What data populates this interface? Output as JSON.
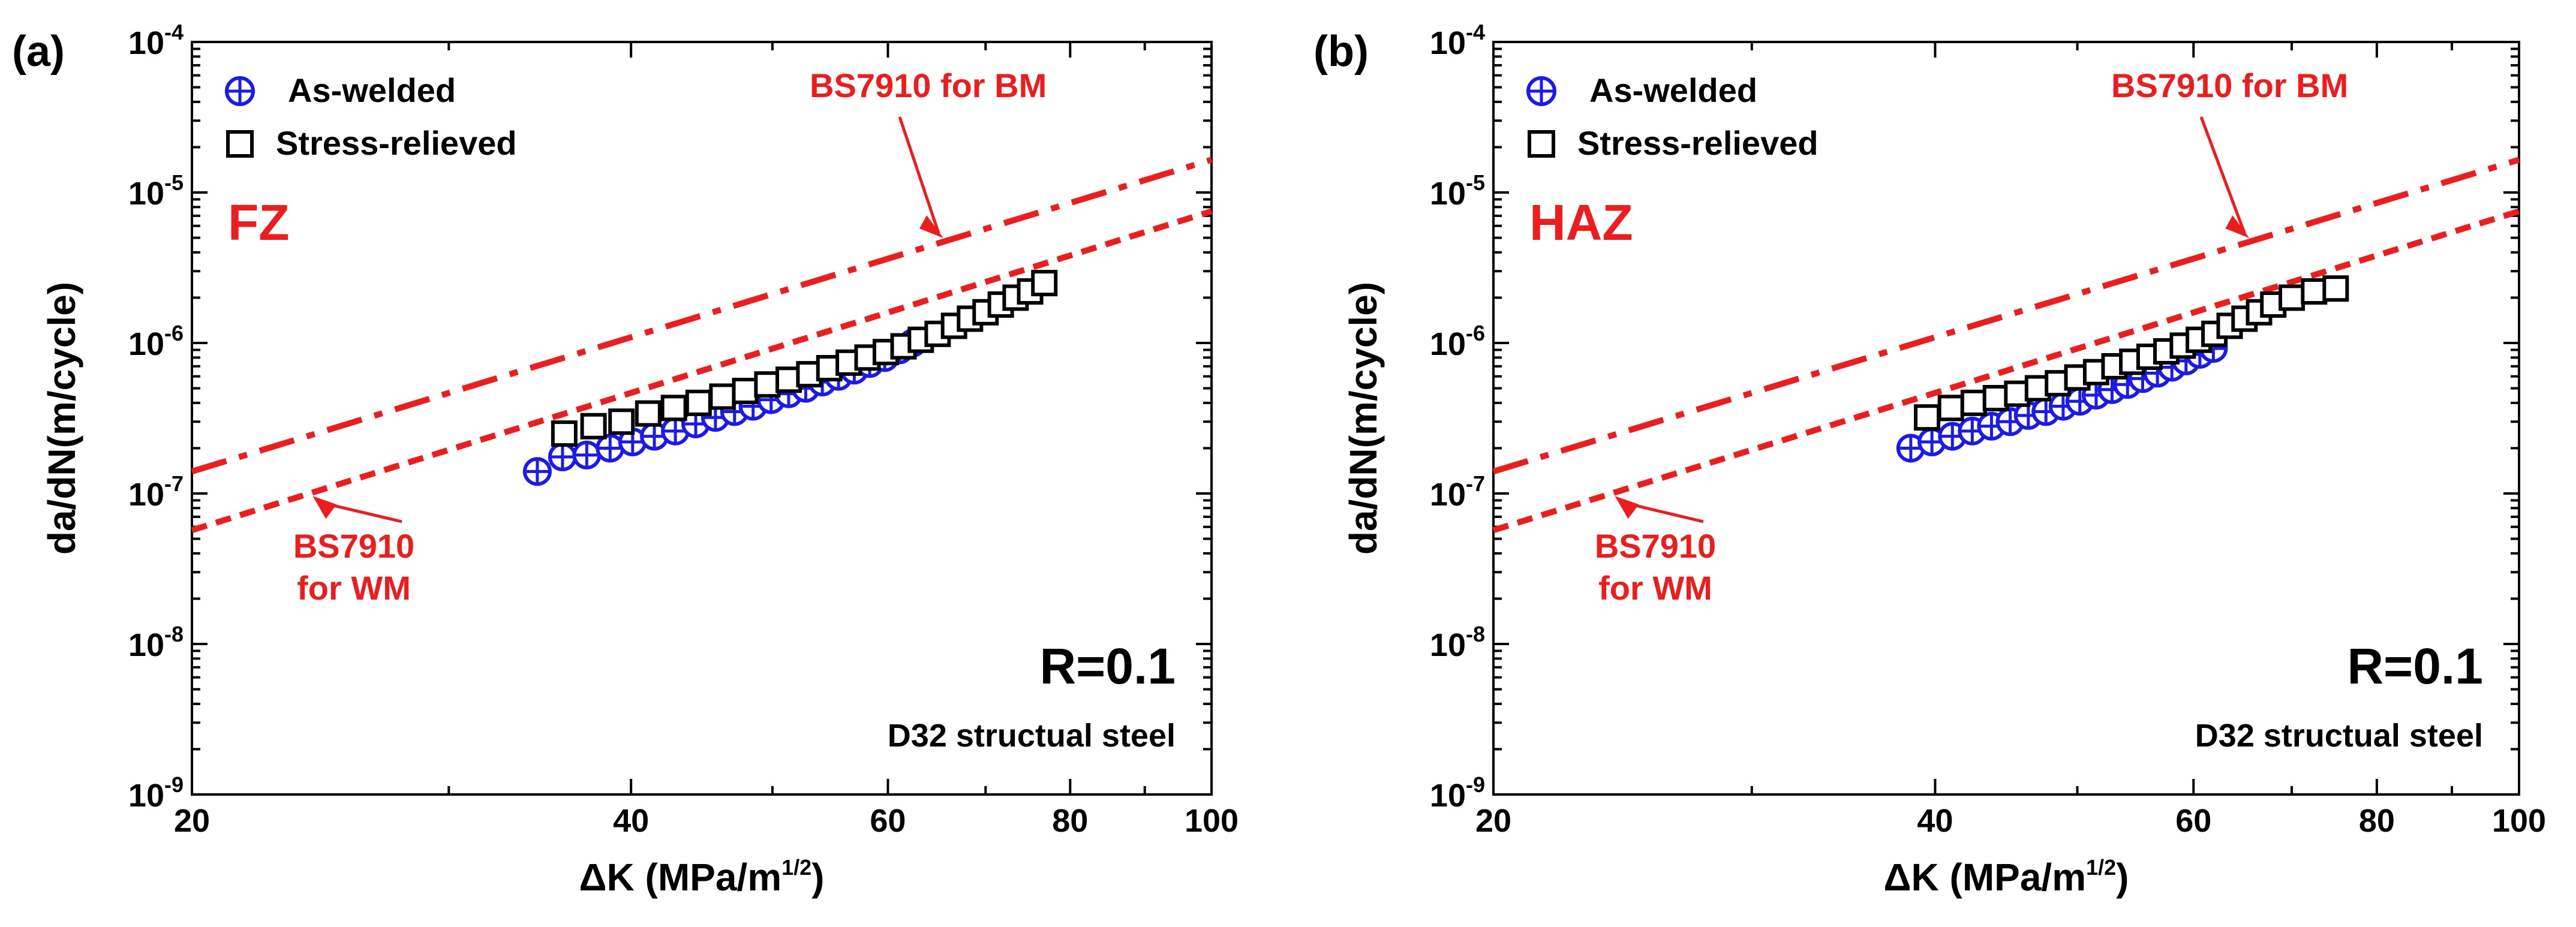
{
  "colors": {
    "as_welded": "#1a1aee",
    "stress_relieved": "#000000",
    "reference": "#ee1c1c"
  },
  "chart_data": [
    {
      "type": "scatter",
      "panel_tag": "(a)",
      "region_label": "FZ",
      "xlabel": "ΔK (MPa/m",
      "xlabel_sup": "1/2",
      "xlabel_close": ")",
      "ylabel": "da/dN(m/cycle)",
      "x_scale": "log",
      "y_scale": "log",
      "xlim": [
        20,
        100
      ],
      "ylim": [
        1e-09,
        0.0001
      ],
      "x_ticks": [
        {
          "v": 20,
          "label": "20"
        },
        {
          "v": 40,
          "label": "40"
        },
        {
          "v": 60,
          "label": "60"
        },
        {
          "v": 80,
          "label": "80"
        },
        {
          "v": 100,
          "label": "100"
        }
      ],
      "y_ticks": [
        {
          "v": 1e-09,
          "mant": "10",
          "exp": "-9"
        },
        {
          "v": 1e-08,
          "mant": "10",
          "exp": "-8"
        },
        {
          "v": 1e-07,
          "mant": "10",
          "exp": "-7"
        },
        {
          "v": 1e-06,
          "mant": "10",
          "exp": "-6"
        },
        {
          "v": 1e-05,
          "mant": "10",
          "exp": "-5"
        },
        {
          "v": 0.0001,
          "mant": "10",
          "exp": "-4"
        }
      ],
      "legend": {
        "placement": "top-left",
        "entries": [
          "As-welded",
          "Stress-relieved"
        ]
      },
      "series": [
        {
          "name": "As-welded",
          "marker": "circle-plus",
          "color": "#1a1aee",
          "x": [
            34.5,
            35.9,
            37.3,
            38.7,
            40.1,
            41.5,
            42.9,
            44.3,
            45.7,
            47.1,
            48.5,
            49.9,
            51.3,
            52.7,
            54.1,
            55.5,
            56.9,
            58.3,
            59.7,
            61.1,
            62.4
          ],
          "y": [
            1.4e-07,
            1.75e-07,
            1.8e-07,
            2e-07,
            2.2e-07,
            2.4e-07,
            2.6e-07,
            2.9e-07,
            3.2e-07,
            3.5e-07,
            3.8e-07,
            4.2e-07,
            4.6e-07,
            5e-07,
            5.5e-07,
            6e-07,
            6.6e-07,
            7.3e-07,
            8e-07,
            9e-07,
            1e-06
          ]
        },
        {
          "name": "Stress-relieved",
          "marker": "square",
          "color": "#000000",
          "x": [
            36.0,
            37.7,
            39.4,
            41.1,
            42.8,
            44.5,
            46.2,
            47.9,
            49.6,
            51.3,
            53.0,
            54.7,
            56.4,
            58.1,
            59.8,
            61.5,
            63.2,
            64.9,
            66.6,
            68.3,
            70.0,
            71.7,
            73.4,
            75.1,
            76.8
          ],
          "y": [
            2.5e-07,
            2.8e-07,
            3e-07,
            3.4e-07,
            3.7e-07,
            4e-07,
            4.4e-07,
            4.8e-07,
            5.3e-07,
            5.7e-07,
            6.2e-07,
            6.8e-07,
            7.4e-07,
            8e-07,
            8.7e-07,
            9.5e-07,
            1.05e-06,
            1.15e-06,
            1.3e-06,
            1.45e-06,
            1.6e-06,
            1.8e-06,
            2e-06,
            2.2e-06,
            2.5e-06
          ]
        }
      ],
      "reference_lines": [
        {
          "label": "BS7910 for BM",
          "style": "dash-dot",
          "x": [
            20,
            100
          ],
          "y": [
            1.4e-07,
            1.65e-05
          ]
        },
        {
          "label_lines": [
            "BS7910",
            "for WM"
          ],
          "style": "dashed",
          "x": [
            20,
            100
          ],
          "y": [
            5.7e-08,
            7.5e-06
          ]
        }
      ],
      "annotations": {
        "ratio": "R=0.1",
        "material": "D32 structual steel"
      }
    },
    {
      "type": "scatter",
      "panel_tag": "(b)",
      "region_label": "HAZ",
      "xlabel": "ΔK (MPa/m",
      "xlabel_sup": "1/2",
      "xlabel_close": ")",
      "ylabel": "da/dN(m/cycle)",
      "x_scale": "log",
      "y_scale": "log",
      "xlim": [
        20,
        100
      ],
      "ylim": [
        1e-09,
        0.0001
      ],
      "x_ticks": [
        {
          "v": 20,
          "label": "20"
        },
        {
          "v": 40,
          "label": "40"
        },
        {
          "v": 60,
          "label": "60"
        },
        {
          "v": 80,
          "label": "80"
        },
        {
          "v": 100,
          "label": "100"
        }
      ],
      "y_ticks": [
        {
          "v": 1e-09,
          "mant": "10",
          "exp": "-9"
        },
        {
          "v": 1e-08,
          "mant": "10",
          "exp": "-8"
        },
        {
          "v": 1e-07,
          "mant": "10",
          "exp": "-7"
        },
        {
          "v": 1e-06,
          "mant": "10",
          "exp": "-6"
        },
        {
          "v": 1e-05,
          "mant": "10",
          "exp": "-5"
        },
        {
          "v": 0.0001,
          "mant": "10",
          "exp": "-4"
        }
      ],
      "legend": {
        "placement": "top-left",
        "entries": [
          "As-welded",
          "Stress-relieved"
        ]
      },
      "series": [
        {
          "name": "As-welded",
          "marker": "circle-plus",
          "color": "#1a1aee",
          "x": [
            38.5,
            39.8,
            41.1,
            42.4,
            43.7,
            45.0,
            46.3,
            47.6,
            48.9,
            50.2,
            51.5,
            52.8,
            54.1,
            55.4,
            56.7,
            58.0,
            59.3,
            60.6,
            61.9
          ],
          "y": [
            2e-07,
            2.2e-07,
            2.4e-07,
            2.6e-07,
            2.8e-07,
            3e-07,
            3.3e-07,
            3.5e-07,
            3.8e-07,
            4.1e-07,
            4.5e-07,
            4.9e-07,
            5.3e-07,
            5.8e-07,
            6.3e-07,
            6.9e-07,
            7.6e-07,
            8.4e-07,
            9.2e-07
          ]
        },
        {
          "name": "Stress-relieved",
          "marker": "square",
          "color": "#000000",
          "x": [
            39.5,
            41.0,
            42.5,
            44.0,
            45.5,
            47.0,
            48.5,
            50.0,
            51.5,
            53.0,
            54.5,
            56.0,
            57.5,
            59.0,
            60.5,
            62.0,
            63.5,
            65.0,
            66.5,
            68.0,
            70.0,
            72.5,
            75.0
          ],
          "y": [
            3.2e-07,
            3.7e-07,
            4e-07,
            4.3e-07,
            4.6e-07,
            5e-07,
            5.4e-07,
            5.9e-07,
            6.4e-07,
            7e-07,
            7.5e-07,
            8.1e-07,
            8.8e-07,
            9.6e-07,
            1.05e-06,
            1.15e-06,
            1.3e-06,
            1.45e-06,
            1.6e-06,
            1.8e-06,
            2e-06,
            2.2e-06,
            2.3e-06
          ]
        }
      ],
      "reference_lines": [
        {
          "label": "BS7910 for BM",
          "style": "dash-dot",
          "x": [
            20,
            100
          ],
          "y": [
            1.4e-07,
            1.65e-05
          ]
        },
        {
          "label_lines": [
            "BS7910",
            "for WM"
          ],
          "style": "dashed",
          "x": [
            20,
            100
          ],
          "y": [
            5.7e-08,
            7.5e-06
          ]
        }
      ],
      "annotations": {
        "ratio": "R=0.1",
        "material": "D32 structual steel"
      }
    }
  ]
}
